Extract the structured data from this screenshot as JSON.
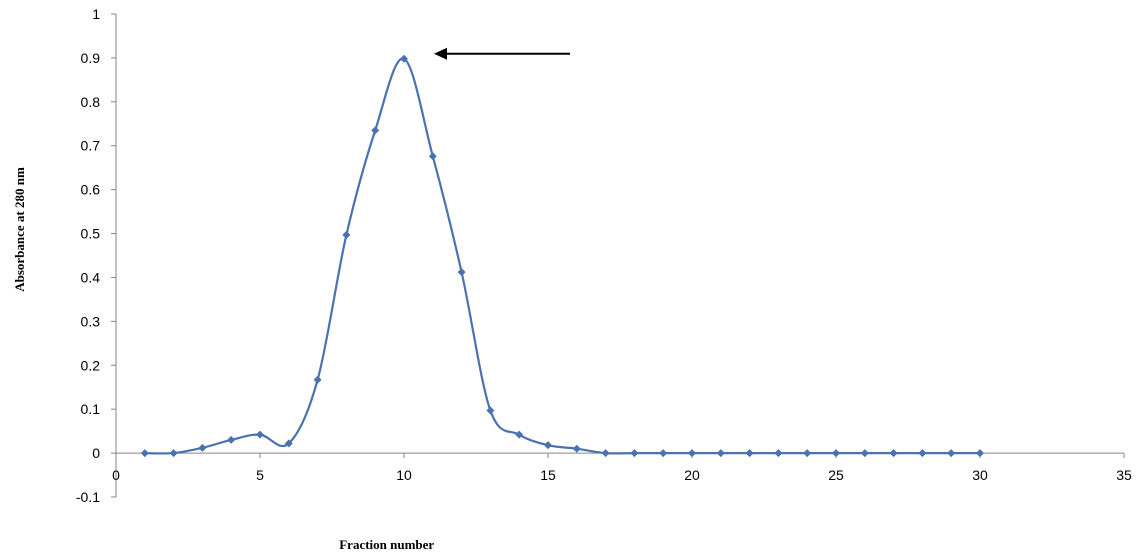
{
  "chart_data": {
    "type": "line",
    "title": "",
    "xlabel": "Fraction number",
    "ylabel": "Absorbance at 280 nm",
    "xlim": [
      0,
      35
    ],
    "ylim": [
      -0.1,
      1
    ],
    "x_ticks": [
      0,
      5,
      10,
      15,
      20,
      25,
      30,
      35
    ],
    "y_ticks": [
      -0.1,
      0,
      0.1,
      0.2,
      0.3,
      0.4,
      0.5,
      0.6,
      0.7,
      0.8,
      0.9,
      1
    ],
    "x_tick_labels": [
      "0",
      "5",
      "10",
      "15",
      "20",
      "25",
      "30",
      "35"
    ],
    "y_tick_labels": [
      "-0.1",
      "0",
      "0.1",
      "0.2",
      "0.3",
      "0.4",
      "0.5",
      "0.6",
      "0.7",
      "0.8",
      "0.9",
      "1"
    ],
    "grid": false,
    "legend": "none",
    "smooth": true,
    "marker": "diamond",
    "series": [
      {
        "color": "#4a72b0",
        "x": [
          1,
          2,
          3,
          4,
          5,
          6,
          7,
          8,
          9,
          10,
          11,
          12,
          13,
          14,
          15,
          16,
          17,
          18,
          19,
          20,
          21,
          22,
          23,
          24,
          25,
          26,
          27,
          28,
          29,
          30
        ],
        "y": [
          0,
          0,
          0.012,
          0.03,
          0.042,
          0.022,
          0.167,
          0.497,
          0.735,
          0.898,
          0.676,
          0.412,
          0.097,
          0.042,
          0.018,
          0.01,
          0,
          0,
          0,
          0,
          0,
          0,
          0,
          0,
          0,
          0,
          0,
          0,
          0,
          0
        ]
      }
    ],
    "annotations": [
      {
        "type": "arrow",
        "direction": "left",
        "points_to": {
          "x": 10,
          "y": 0.898
        }
      }
    ]
  }
}
